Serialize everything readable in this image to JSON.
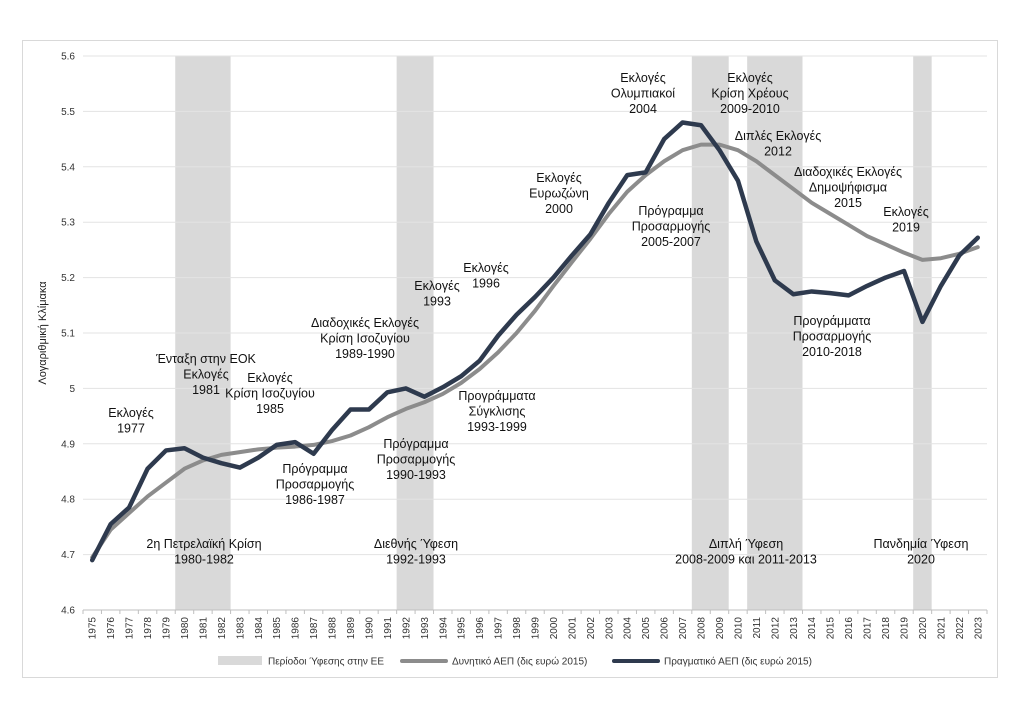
{
  "chart_data": {
    "type": "line",
    "ylabel": "Λογαριθμική Κλίμακα",
    "ylim": [
      4.6,
      5.6
    ],
    "yticks": [
      4.6,
      4.7,
      4.8,
      4.9,
      5,
      5.1,
      5.2,
      5.3,
      5.4,
      5.5,
      5.6
    ],
    "ytick_labels": [
      "4.6",
      "4.7",
      "4.8",
      "4.9",
      "5",
      "5.1",
      "5.2",
      "5.3",
      "5.4",
      "5.5",
      "5.6"
    ],
    "x": [
      1975,
      1976,
      1977,
      1978,
      1979,
      1980,
      1981,
      1982,
      1983,
      1984,
      1985,
      1986,
      1987,
      1988,
      1989,
      1990,
      1991,
      1992,
      1993,
      1994,
      1995,
      1996,
      1997,
      1998,
      1999,
      2000,
      2001,
      2002,
      2003,
      2004,
      2005,
      2006,
      2007,
      2008,
      2009,
      2010,
      2011,
      2012,
      2013,
      2014,
      2015,
      2016,
      2017,
      2018,
      2019,
      2020,
      2021,
      2022,
      2023
    ],
    "x_labels": [
      "1975",
      "1976",
      "1977",
      "1978",
      "1979",
      "1980",
      "1981",
      "1982",
      "1983",
      "1984",
      "1985",
      "1986",
      "1987",
      "1988",
      "1989",
      "1990",
      "1991",
      "1992",
      "1993",
      "1994",
      "1995",
      "1996",
      "1997",
      "1998",
      "1999",
      "2000",
      "2001",
      "2002",
      "2003",
      "2004",
      "2005",
      "2006",
      "2007",
      "2008",
      "2009",
      "2010",
      "2011",
      "2012",
      "2013",
      "2014",
      "2015",
      "2016",
      "2017",
      "2018",
      "2019",
      "2020",
      "2021",
      "2022",
      "2023"
    ],
    "recessions": [
      {
        "start": 1980,
        "end": 1982
      },
      {
        "start": 1992,
        "end": 1993
      },
      {
        "start": 2008,
        "end": 2009
      },
      {
        "start": 2011,
        "end": 2013
      },
      {
        "start": 2020,
        "end": 2020
      }
    ],
    "series": [
      {
        "name": "Δυνητικό ΑΕΠ (δις ευρώ 2015)",
        "color": "#8c8c8c",
        "values": [
          4.695,
          4.745,
          4.775,
          4.805,
          4.83,
          4.855,
          4.87,
          4.88,
          4.885,
          4.89,
          4.893,
          4.895,
          4.898,
          4.905,
          4.915,
          4.93,
          4.948,
          4.963,
          4.975,
          4.99,
          5.01,
          5.035,
          5.065,
          5.1,
          5.14,
          5.185,
          5.228,
          5.27,
          5.315,
          5.355,
          5.385,
          5.41,
          5.43,
          5.44,
          5.44,
          5.43,
          5.41,
          5.385,
          5.36,
          5.335,
          5.315,
          5.295,
          5.275,
          5.26,
          5.245,
          5.232,
          5.235,
          5.243,
          5.255
        ]
      },
      {
        "name": "Πραγματικό ΑΕΠ (δις ευρώ 2015)",
        "color": "#2e3a4e",
        "values": [
          4.69,
          4.755,
          4.785,
          4.855,
          4.888,
          4.892,
          4.875,
          4.865,
          4.857,
          4.875,
          4.898,
          4.903,
          4.882,
          4.925,
          4.962,
          4.962,
          4.993,
          5.0,
          4.985,
          5.002,
          5.022,
          5.05,
          5.095,
          5.133,
          5.165,
          5.2,
          5.24,
          5.278,
          5.335,
          5.385,
          5.39,
          5.45,
          5.48,
          5.475,
          5.43,
          5.375,
          5.265,
          5.195,
          5.17,
          5.175,
          5.172,
          5.168,
          5.185,
          5.2,
          5.212,
          5.12,
          5.185,
          5.24,
          5.272
        ]
      }
    ],
    "annotations": [
      {
        "id": "1977",
        "lines": [
          "Εκλογές",
          "1977"
        ]
      },
      {
        "id": "eok",
        "lines": [
          "Ένταξη στην ΕΟΚ",
          "Εκλογές",
          "1981"
        ]
      },
      {
        "id": "1985",
        "lines": [
          "Εκλογές",
          "Κρίση Ισοζυγίου",
          "1985"
        ]
      },
      {
        "id": "1989",
        "lines": [
          "Διαδοχικές Εκλογές",
          "Κρίση Ισοζυγίου",
          "1989-1990"
        ]
      },
      {
        "id": "1993",
        "lines": [
          "Εκλογές",
          "1993"
        ]
      },
      {
        "id": "1996",
        "lines": [
          "Εκλογές",
          "1996"
        ]
      },
      {
        "id": "2000",
        "lines": [
          "Εκλογές",
          "Ευρωζώνη",
          "2000"
        ]
      },
      {
        "id": "2004",
        "lines": [
          "Εκλογές",
          "Ολυμπιακοί",
          "2004"
        ]
      },
      {
        "id": "2009",
        "lines": [
          "Εκλογές",
          "Κρίση Χρέους",
          "2009-2010"
        ]
      },
      {
        "id": "2012",
        "lines": [
          "Διπλές Εκλογές",
          "2012"
        ]
      },
      {
        "id": "2015",
        "lines": [
          "Διαδοχικές Εκλογές",
          "Δημοψήφισμα",
          "2015"
        ]
      },
      {
        "id": "2019",
        "lines": [
          "Εκλογές",
          "2019"
        ]
      },
      {
        "id": "prog2005",
        "lines": [
          "Πρόγραμμα",
          "Προσαρμογής",
          "2005-2007"
        ]
      },
      {
        "id": "prog2010",
        "lines": [
          "Προγράμματα",
          "Προσαρμογής",
          "2010-2018"
        ]
      },
      {
        "id": "syg1993",
        "lines": [
          "Προγράμματα",
          "Σύγκλισης",
          "1993-1999"
        ]
      },
      {
        "id": "prog1990",
        "lines": [
          "Πρόγραμμα",
          "Προσαρμογής",
          "1990-1993"
        ]
      },
      {
        "id": "prog1986",
        "lines": [
          "Πρόγραμμα",
          "Προσαρμογής",
          "1986-1987"
        ]
      },
      {
        "id": "oil",
        "lines": [
          "2η Πετρελαϊκή Κρίση",
          "1980-1982"
        ]
      },
      {
        "id": "glob",
        "lines": [
          "Διεθνής Ύφεση",
          "1992-1993"
        ]
      },
      {
        "id": "double",
        "lines": [
          "Διπλή Ύφεση",
          "2008-2009 και 2011-2013"
        ]
      },
      {
        "id": "pand",
        "lines": [
          "Πανδημία Ύφεση",
          "2020"
        ]
      }
    ],
    "legend": [
      {
        "label": "Περίοδοι Ύφεσης στην ΕΕ",
        "kind": "area",
        "color": "#d9d9d9"
      },
      {
        "label": "Δυνητικό ΑΕΠ (δις ευρώ 2015)",
        "kind": "line",
        "color": "#8c8c8c"
      },
      {
        "label": "Πραγματικό ΑΕΠ (δις ευρώ 2015)",
        "kind": "line",
        "color": "#2e3a4e"
      }
    ],
    "legend_placement": "bottom",
    "grid": true
  }
}
